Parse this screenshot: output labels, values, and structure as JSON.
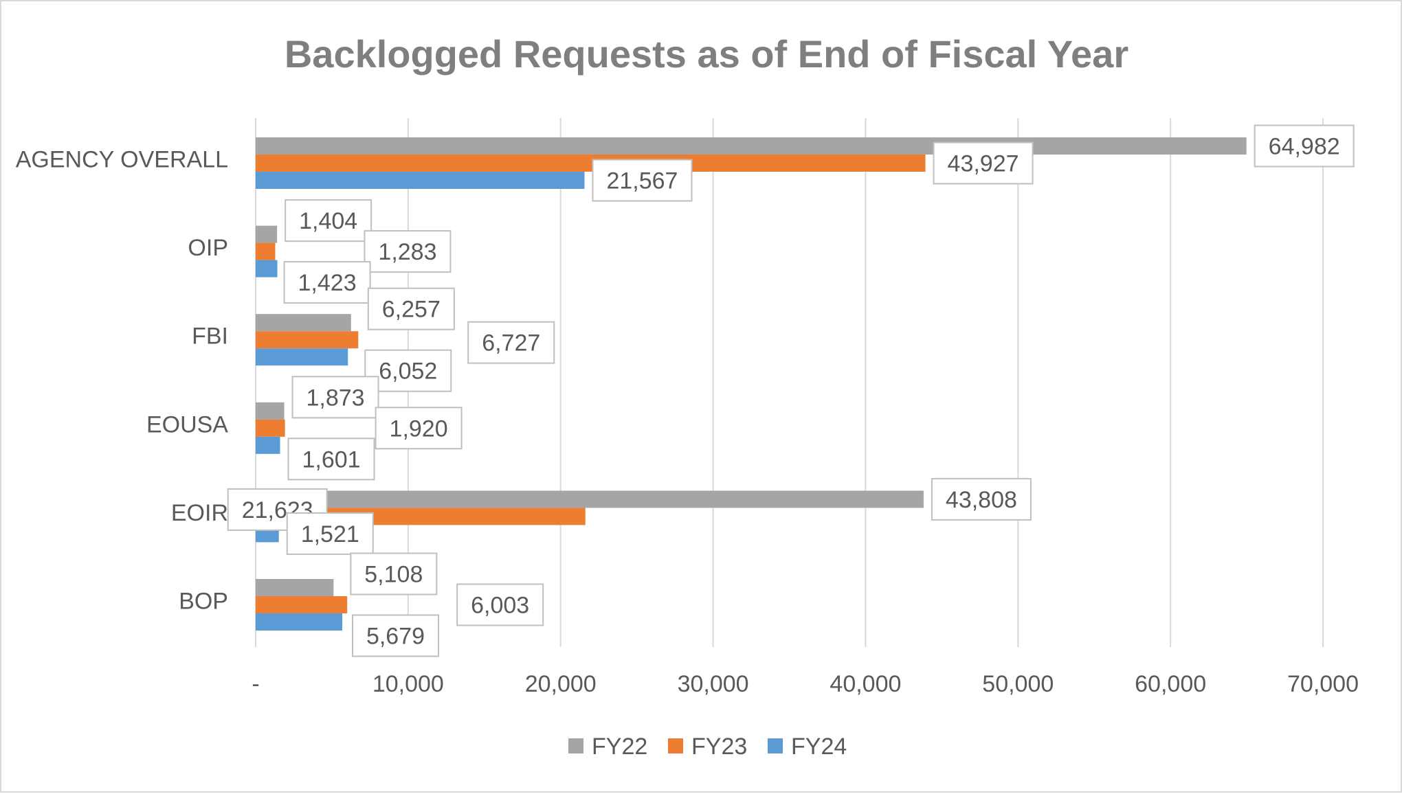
{
  "chart_data": {
    "type": "bar",
    "orientation": "horizontal",
    "title": "Backlogged Requests as of End of Fiscal Year",
    "categories": [
      "AGENCY OVERALL",
      "OIP",
      "FBI",
      "EOUSA",
      "EOIR",
      "BOP"
    ],
    "series": [
      {
        "name": "FY22",
        "color": "#a5a5a5",
        "values": [
          64982,
          1404,
          6257,
          1873,
          43808,
          5108
        ],
        "labels": [
          "64,982",
          "1,404",
          "6,257",
          "1,873",
          "43,808",
          "5,108"
        ]
      },
      {
        "name": "FY23",
        "color": "#ed7d31",
        "values": [
          43927,
          1283,
          6727,
          1920,
          21623,
          6003
        ],
        "labels": [
          "43,927",
          "1,283",
          "6,727",
          "1,920",
          "21,623",
          "6,003"
        ]
      },
      {
        "name": "FY24",
        "color": "#5b9bd5",
        "values": [
          21567,
          1423,
          6052,
          1601,
          1521,
          5679
        ],
        "labels": [
          "21,567",
          "1,423",
          "6,052",
          "1,601",
          "1,521",
          "5,679"
        ]
      }
    ],
    "xlim": [
      0,
      70000
    ],
    "xticks": [
      0,
      10000,
      20000,
      30000,
      40000,
      50000,
      60000,
      70000
    ],
    "xtick_labels": [
      "-",
      "10,000",
      "20,000",
      "30,000",
      "40,000",
      "50,000",
      "60,000",
      "70,000"
    ],
    "xlabel": "",
    "ylabel": "",
    "grid": true,
    "legend_position": "bottom"
  }
}
